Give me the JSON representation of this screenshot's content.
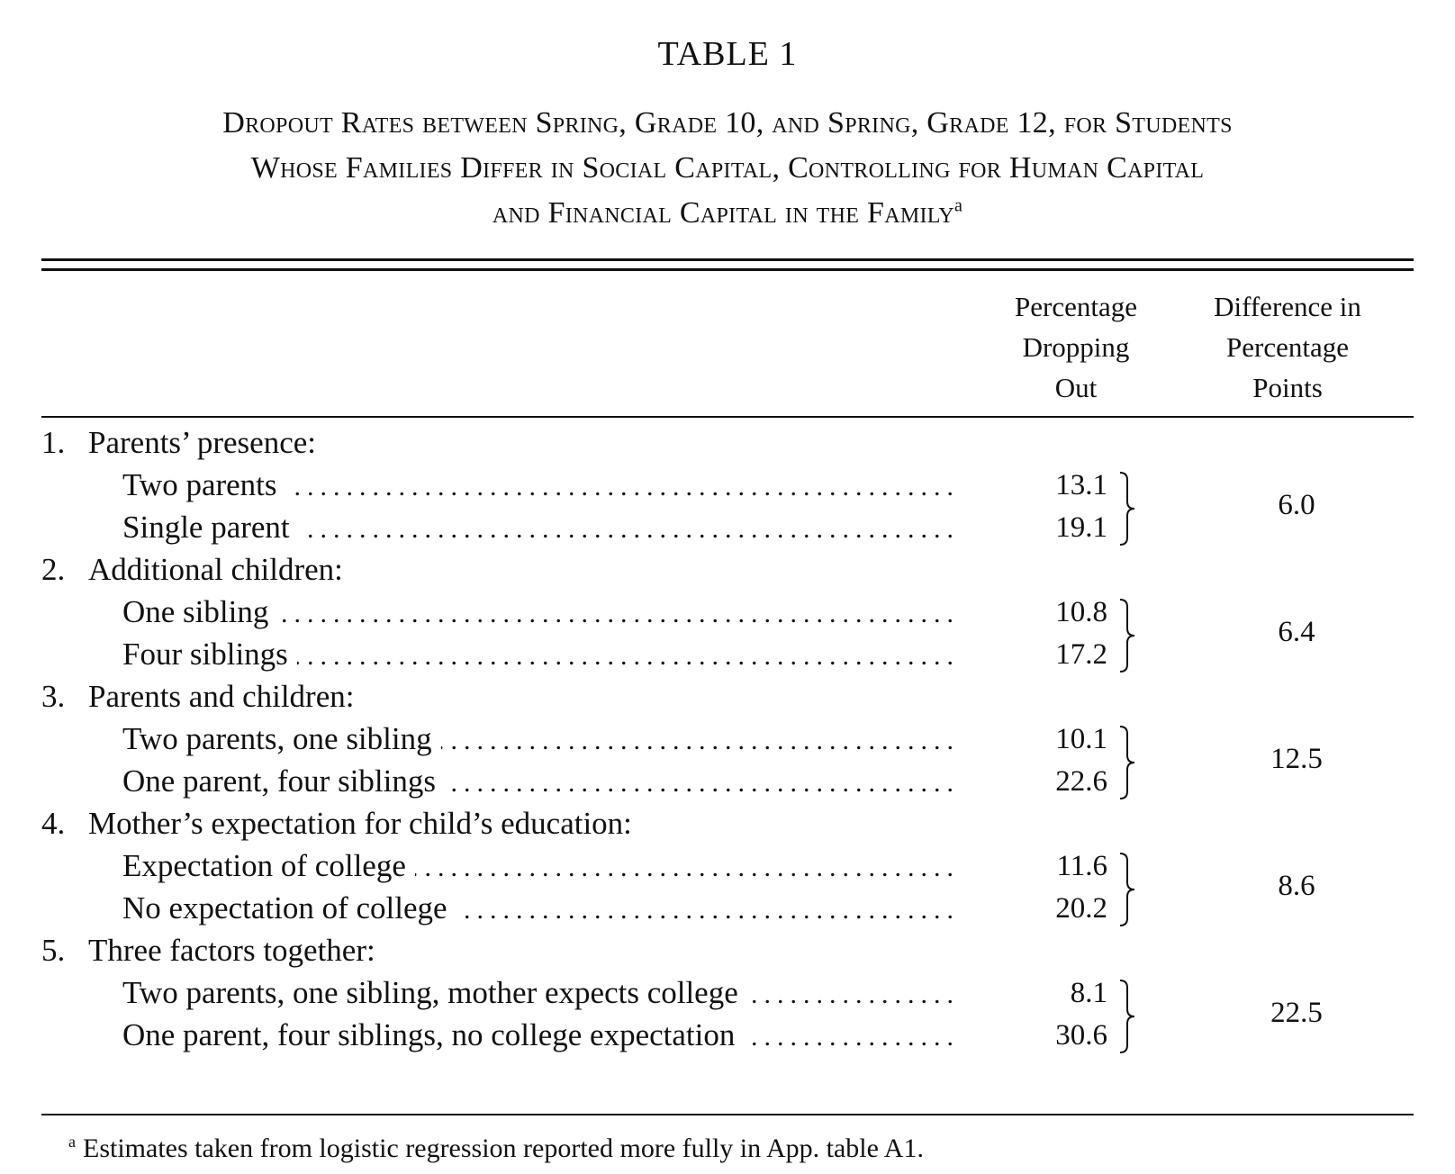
{
  "table": {
    "number": "TABLE 1",
    "title_lines": [
      "Dropout Rates between Spring, Grade 10, and Spring, Grade 12, for Students",
      "Whose Families Differ in Social Capital, Controlling for Human Capital",
      "and Financial Capital in the Family"
    ],
    "title_footnote_marker": "a",
    "columns": {
      "col1": [
        "Percentage",
        "Dropping",
        "Out"
      ],
      "col2": [
        "Difference in",
        "Percentage",
        "Points"
      ]
    },
    "sections": [
      {
        "number": "1.",
        "heading": "Parents’ presence:",
        "rows": [
          {
            "label": "Two parents",
            "value": "13.1"
          },
          {
            "label": "Single parent",
            "value": "19.1"
          }
        ],
        "difference": "6.0"
      },
      {
        "number": "2.",
        "heading": "Additional children:",
        "rows": [
          {
            "label": "One sibling",
            "value": "10.8"
          },
          {
            "label": "Four siblings",
            "value": "17.2"
          }
        ],
        "difference": "6.4"
      },
      {
        "number": "3.",
        "heading": "Parents and children:",
        "rows": [
          {
            "label": "Two parents, one sibling",
            "value": "10.1"
          },
          {
            "label": "One parent, four siblings",
            "value": "22.6"
          }
        ],
        "difference": "12.5"
      },
      {
        "number": "4.",
        "heading": "Mother’s expectation for child’s education:",
        "rows": [
          {
            "label": "Expectation of college",
            "value": "11.6"
          },
          {
            "label": "No expectation of college",
            "value": "20.2"
          }
        ],
        "difference": "8.6"
      },
      {
        "number": "5.",
        "heading": "Three factors together:",
        "rows": [
          {
            "label": "Two parents, one sibling, mother expects college",
            "value": "8.1"
          },
          {
            "label": "One parent, four siblings, no college expectation",
            "value": "30.6"
          }
        ],
        "difference": "22.5"
      }
    ],
    "footnote": {
      "marker": "a",
      "text": "Estimates taken from logistic regression reported more fully in App. table A1."
    }
  }
}
